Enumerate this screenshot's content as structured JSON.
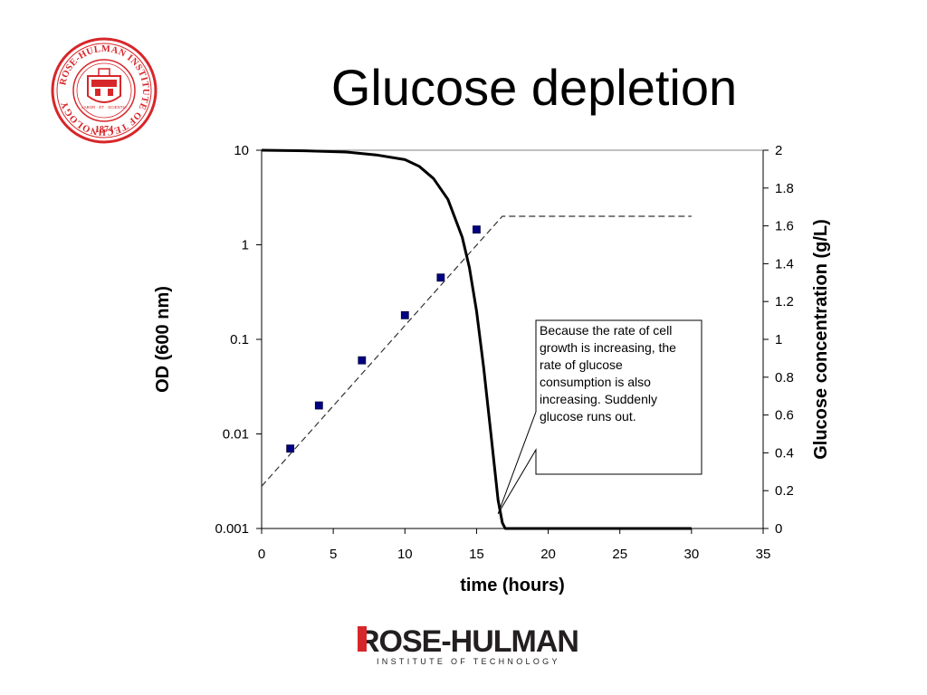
{
  "slide": {
    "title": "Glucose depletion"
  },
  "branding": {
    "seal_text_top": "ROSE-HULMAN INSTITUTE OF TECHNOLOGY",
    "seal_year": "1874",
    "seal_motto": "LABOR · ET · SCIENTIA",
    "logo_main": "ROSE-HULMAN",
    "logo_sub": "INSTITUTE OF TECHNOLOGY",
    "colors": {
      "seal_red": "#d7262a",
      "logo_red": "#d7262a",
      "logo_dark": "#231f20"
    }
  },
  "chart_data": {
    "type": "scatter",
    "xlabel": "time (hours)",
    "ylabel_left": "OD (600 nm)",
    "ylabel_right": "Glucose concentration (g/L)",
    "x_range": [
      0,
      35
    ],
    "x_ticks": [
      "0",
      "5",
      "10",
      "15",
      "20",
      "25",
      "30",
      "35"
    ],
    "y_left_scale": "log",
    "y_left_range": [
      0.001,
      10
    ],
    "y_left_ticks": [
      "10",
      "1",
      "0.1",
      "0.01",
      "0.001"
    ],
    "y_right_range": [
      0,
      2
    ],
    "y_right_ticks": [
      "2",
      "1.8",
      "1.6",
      "1.4",
      "1.2",
      "1",
      "0.8",
      "0.6",
      "0.4",
      "0.2",
      "0"
    ],
    "grid": false,
    "series": [
      {
        "type": "scatter",
        "axis": "left",
        "color": "#000080",
        "marker": "square",
        "points": [
          {
            "x": 2,
            "y": 0.007
          },
          {
            "x": 4,
            "y": 0.02
          },
          {
            "x": 7,
            "y": 0.06
          },
          {
            "x": 10,
            "y": 0.18
          },
          {
            "x": 12.5,
            "y": 0.45
          },
          {
            "x": 15,
            "y": 1.45
          }
        ]
      },
      {
        "type": "line",
        "style": "dashed",
        "axis": "left",
        "color": "#333333",
        "points": [
          {
            "x": 0,
            "y": 0.0028
          },
          {
            "x": 16.8,
            "y": 2.0
          },
          {
            "x": 30,
            "y": 2.0
          }
        ]
      },
      {
        "type": "line",
        "style": "solid",
        "axis": "right",
        "color": "#000000",
        "points": [
          {
            "x": 0,
            "y": 2.0
          },
          {
            "x": 3,
            "y": 1.997
          },
          {
            "x": 6,
            "y": 1.99
          },
          {
            "x": 8,
            "y": 1.975
          },
          {
            "x": 10,
            "y": 1.95
          },
          {
            "x": 11,
            "y": 1.915
          },
          {
            "x": 12,
            "y": 1.85
          },
          {
            "x": 13,
            "y": 1.74
          },
          {
            "x": 14,
            "y": 1.54
          },
          {
            "x": 14.5,
            "y": 1.38
          },
          {
            "x": 15,
            "y": 1.15
          },
          {
            "x": 15.5,
            "y": 0.85
          },
          {
            "x": 16,
            "y": 0.5
          },
          {
            "x": 16.5,
            "y": 0.15
          },
          {
            "x": 16.8,
            "y": 0.03
          },
          {
            "x": 17,
            "y": 0.0
          },
          {
            "x": 30,
            "y": 0.0
          }
        ]
      }
    ],
    "annotation": {
      "text": "Because the rate of cell growth is increasing, the rate of glucose consumption is also increasing. Suddenly glucose runs out.",
      "points_to": {
        "x": 16.5,
        "y_right": 0.25
      }
    }
  }
}
